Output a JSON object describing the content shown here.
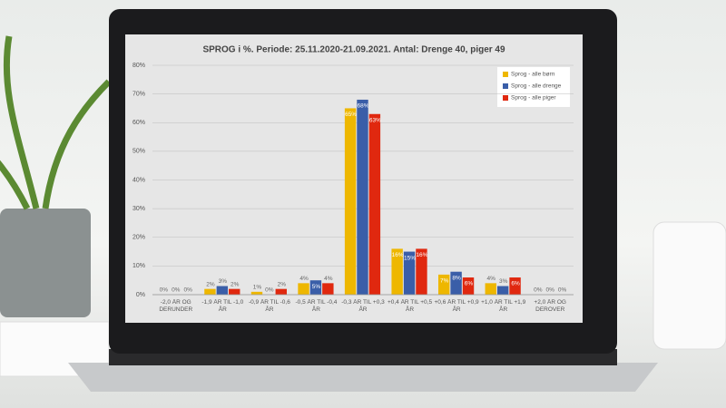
{
  "chart_data": {
    "type": "bar",
    "title": "SPROG i %. Periode: 25.11.2020-21.09.2021. Antal: Drenge 40, piger 49",
    "categories": [
      "-2,0 ÅR OG DERUNDER",
      "-1,9 ÅR TIL -1,0 ÅR",
      "-0,9 ÅR TIL -0,6 ÅR",
      "-0,5 ÅR TIL -0,4 ÅR",
      "-0,3 ÅR TIL +0,3 ÅR",
      "+0,4 ÅR TIL +0,5 ÅR",
      "+0,6 ÅR TIL +0,9 ÅR",
      "+1,0 ÅR TIL +1,9 ÅR",
      "+2,0 ÅR OG DEROVER"
    ],
    "series": [
      {
        "name": "Sprog - alle børn",
        "color": "#eeb700",
        "values": [
          0,
          2,
          1,
          4,
          65,
          16,
          7,
          4,
          0
        ],
        "value_labels": [
          "0%",
          "2%",
          "1%",
          "4%",
          "65%",
          "16%",
          "7%",
          "4%",
          "0%"
        ]
      },
      {
        "name": "Sprog - alle drenge",
        "color": "#3a5ea8",
        "values": [
          0,
          3,
          0,
          5,
          68,
          15,
          8,
          3,
          0
        ],
        "value_labels": [
          "0%",
          "3%",
          "0%",
          "5%",
          "68%",
          "15%",
          "8%",
          "3%",
          "0%"
        ]
      },
      {
        "name": "Sprog - alle piger",
        "color": "#e0280f",
        "values": [
          0,
          2,
          2,
          4,
          63,
          16,
          6,
          6,
          0
        ],
        "value_labels": [
          "0%",
          "2%",
          "2%",
          "4%",
          "63%",
          "16%",
          "6%",
          "6%",
          "0%"
        ]
      }
    ],
    "ylim": [
      0,
      80
    ],
    "yticks": [
      {
        "value": 0,
        "label": "0%"
      },
      {
        "value": 10,
        "label": "10%"
      },
      {
        "value": 20,
        "label": "20%"
      },
      {
        "value": 30,
        "label": "30%"
      },
      {
        "value": 40,
        "label": "40%"
      },
      {
        "value": 50,
        "label": "50%"
      },
      {
        "value": 60,
        "label": "60%"
      },
      {
        "value": 70,
        "label": "70%"
      },
      {
        "value": 80,
        "label": "80%"
      }
    ],
    "grid": true,
    "legend": "top-right"
  }
}
